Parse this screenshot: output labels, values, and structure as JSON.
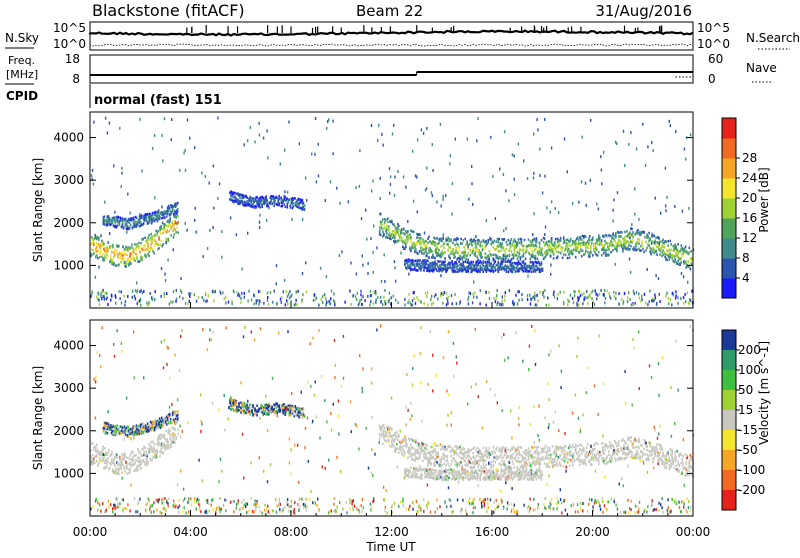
{
  "header": {
    "radar": "Blackstone (fitACF)",
    "beam": "Beam 22",
    "date": "31/Aug/2016"
  },
  "noise_panel": {
    "left_label": "N.Sky",
    "right_label": "N.Search",
    "tick_top": "10^5",
    "tick_bottom": "10^0"
  },
  "freq_panel": {
    "left_label_1": "Freq.",
    "left_label_2": "[MHz]",
    "left_tick_top": "18",
    "left_tick_bottom": "8",
    "right_label": "Nave",
    "right_tick_top": "60",
    "right_tick_bottom": "0"
  },
  "cpid_panel": {
    "label": "CPID",
    "mode": "normal (fast) 151"
  },
  "chart_data": [
    {
      "type": "heatmap",
      "name": "power",
      "ylabel": "Slant Range [km]",
      "ylim": [
        0,
        4600
      ],
      "yticks": [
        "1000",
        "2000",
        "3000",
        "4000"
      ],
      "xlim": [
        0,
        24
      ],
      "colorbar_label": "Power [dB]",
      "colorbar_ticks": [
        "4",
        "8",
        "12",
        "16",
        "20",
        "24",
        "28"
      ],
      "colorbar_colors": [
        "#1a1aff",
        "#2b55b0",
        "#3f8a8a",
        "#4fa35a",
        "#9ed234",
        "#f5e42e",
        "#f6a623",
        "#f26a22",
        "#e6221b"
      ],
      "bands": [
        {
          "name": "main-echo",
          "t": [
            0,
            0.5,
            1,
            1.5,
            2,
            2.5,
            3,
            3.5
          ],
          "r": [
            1500,
            1400,
            1250,
            1250,
            1380,
            1550,
            1800,
            2050
          ],
          "level": 26
        },
        {
          "name": "upper-echo",
          "t": [
            0.5,
            1.5,
            2.5,
            3.5
          ],
          "r": [
            2100,
            2000,
            2150,
            2400
          ],
          "level": 10
        },
        {
          "name": "pre-noon-scatter",
          "t": [
            5.5,
            6.5,
            7.5,
            8.5
          ],
          "r": [
            2650,
            2500,
            2550,
            2450
          ],
          "level": 8
        },
        {
          "name": "afternoon-echo",
          "t": [
            11.5,
            12.5,
            13.5,
            15,
            17,
            19,
            20.5,
            21.5,
            22.5,
            24
          ],
          "r": [
            2000,
            1650,
            1450,
            1400,
            1400,
            1450,
            1500,
            1650,
            1500,
            1150
          ],
          "level": 18
        },
        {
          "name": "afternoon-lower",
          "t": [
            12.5,
            14,
            16,
            18
          ],
          "r": [
            1050,
            1000,
            1000,
            1000
          ],
          "level": 8
        }
      ]
    },
    {
      "type": "heatmap",
      "name": "velocity",
      "ylabel": "Slant Range [km]",
      "ylim": [
        0,
        4600
      ],
      "yticks": [
        "1000",
        "2000",
        "3000",
        "4000"
      ],
      "xlim": [
        0,
        24
      ],
      "xticks": [
        "00:00",
        "04:00",
        "08:00",
        "12:00",
        "16:00",
        "20:00",
        "00:00"
      ],
      "xlabel": "Time UT",
      "colorbar_label": "Velocity [m s^-1]",
      "colorbar_ticks": [
        "200",
        "100",
        "50",
        "15",
        "-15",
        "-50",
        "-100",
        "-200"
      ],
      "colorbar_colors": [
        "#1a3a9a",
        "#2f9a6a",
        "#3fbf3f",
        "#9ed234",
        "#c8c8c0",
        "#f5e42e",
        "#f6a623",
        "#f26a22",
        "#e6221b"
      ],
      "dominant_value": "-15 to 15 (ground scatter, grey)"
    }
  ]
}
